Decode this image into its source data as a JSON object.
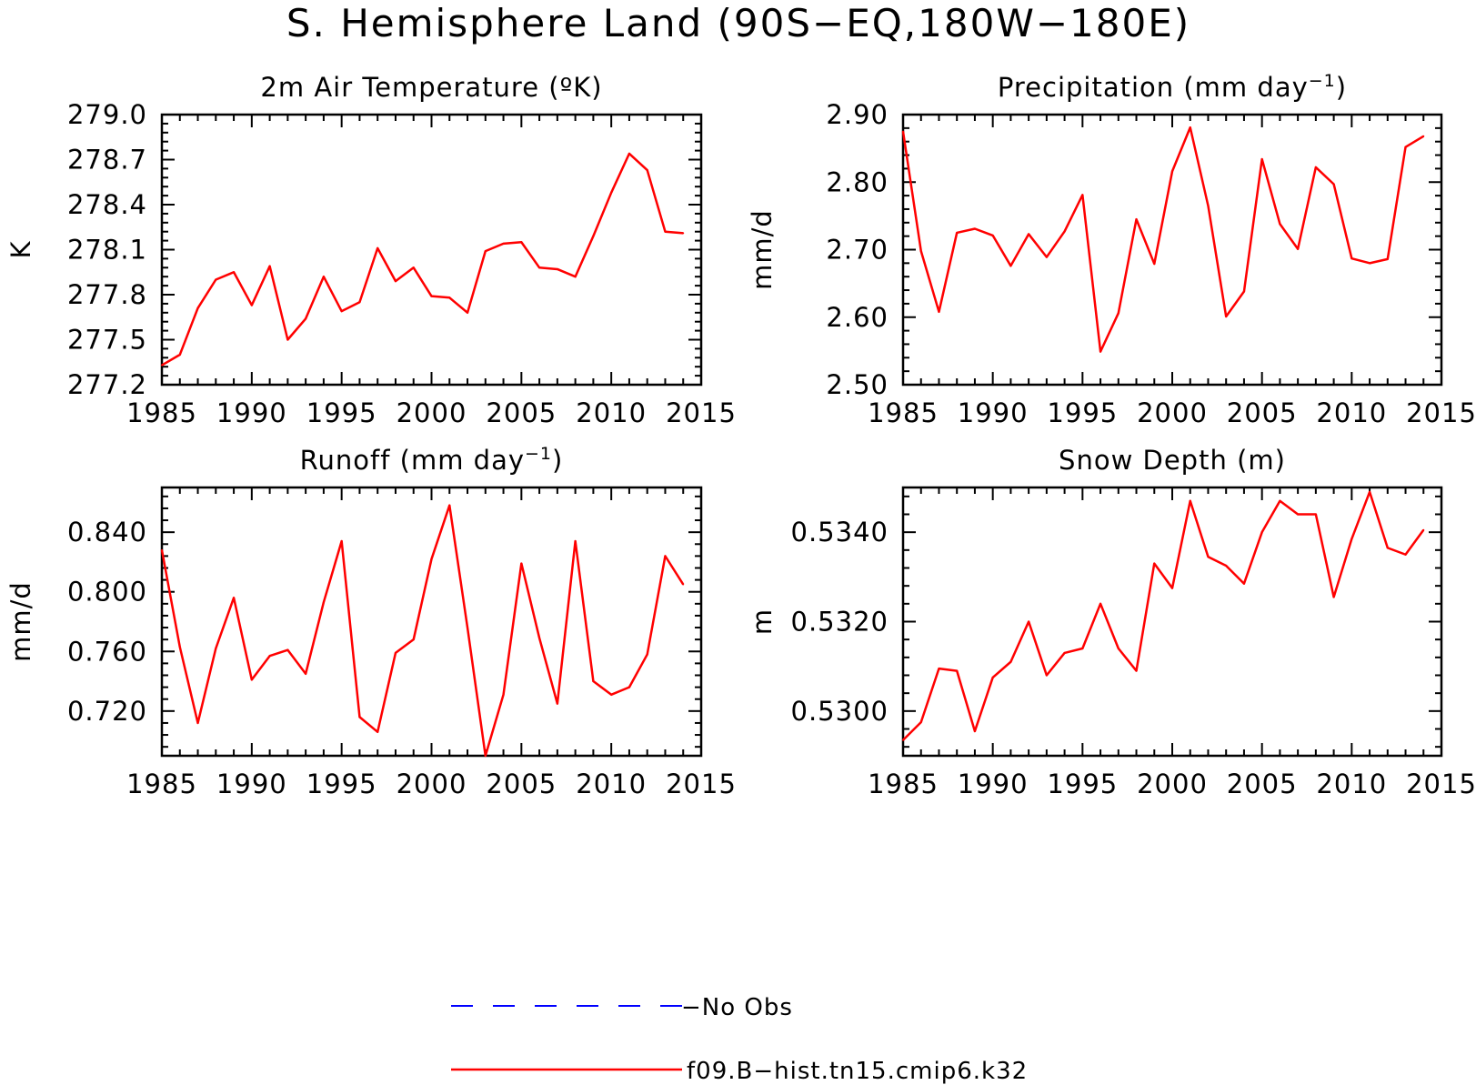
{
  "figure": {
    "title": "S. Hemisphere Land (90S−EQ,180W−180E)"
  },
  "legend": {
    "placement": "bottom-center",
    "entries": [
      {
        "label": "−No Obs",
        "color": "#0000ff",
        "dashed": true
      },
      {
        "label": "f09.B−hist.tn15.cmip6.k32",
        "color": "#ff0000",
        "dashed": false
      }
    ]
  },
  "chart_data": [
    {
      "type": "line",
      "title": "2m Air Temperature (ºK)",
      "title_sup": "",
      "title_end": "",
      "xlabel": "",
      "ylabel": "K",
      "xlim": [
        1985,
        2015
      ],
      "ylim": [
        277.2,
        279.0
      ],
      "xticks": [
        "1985",
        "1990",
        "1995",
        "2000",
        "2005",
        "2010",
        "2015"
      ],
      "yticks": [
        "277.2",
        "277.5",
        "277.8",
        "278.1",
        "278.4",
        "278.7",
        "279.0"
      ],
      "x": [
        1985,
        1986,
        1987,
        1988,
        1989,
        1990,
        1991,
        1992,
        1993,
        1994,
        1995,
        1996,
        1997,
        1998,
        1999,
        2000,
        2001,
        2002,
        2003,
        2004,
        2005,
        2006,
        2007,
        2008,
        2009,
        2010,
        2011,
        2012,
        2013,
        2014
      ],
      "series": [
        {
          "values": [
            277.33,
            277.4,
            277.71,
            277.9,
            277.95,
            277.73,
            277.99,
            277.5,
            277.64,
            277.92,
            277.69,
            277.75,
            278.11,
            277.89,
            277.98,
            277.79,
            277.78,
            277.68,
            278.09,
            278.14,
            278.15,
            277.98,
            277.97,
            277.92,
            278.19,
            278.48,
            278.74,
            278.63,
            278.22,
            278.21
          ],
          "color": "#ff0000"
        }
      ]
    },
    {
      "type": "line",
      "title": "Precipitation (mm day",
      "title_sup": "−1",
      "title_end": ")",
      "xlabel": "",
      "ylabel": "mm/d",
      "xlim": [
        1985,
        2015
      ],
      "ylim": [
        2.5,
        2.9
      ],
      "xticks": [
        "1985",
        "1990",
        "1995",
        "2000",
        "2005",
        "2010",
        "2015"
      ],
      "yticks": [
        "2.50",
        "2.60",
        "2.70",
        "2.80",
        "2.90"
      ],
      "x": [
        1985,
        1986,
        1987,
        1988,
        1989,
        1990,
        1991,
        1992,
        1993,
        1994,
        1995,
        1996,
        1997,
        1998,
        1999,
        2000,
        2001,
        2002,
        2003,
        2004,
        2005,
        2006,
        2007,
        2008,
        2009,
        2010,
        2011,
        2012,
        2013,
        2014
      ],
      "series": [
        {
          "values": [
            2.875,
            2.698,
            2.608,
            2.725,
            2.731,
            2.721,
            2.676,
            2.723,
            2.689,
            2.727,
            2.781,
            2.549,
            2.606,
            2.745,
            2.679,
            2.816,
            2.881,
            2.765,
            2.601,
            2.638,
            2.834,
            2.738,
            2.701,
            2.822,
            2.797,
            2.687,
            2.68,
            2.686,
            2.852,
            2.868
          ],
          "color": "#ff0000"
        }
      ]
    },
    {
      "type": "line",
      "title": "Runoff (mm day",
      "title_sup": "−1",
      "title_end": ")",
      "xlabel": "",
      "ylabel": "mm/d",
      "xlim": [
        1985,
        2015
      ],
      "ylim": [
        0.69,
        0.87
      ],
      "xticks": [
        "1985",
        "1990",
        "1995",
        "2000",
        "2005",
        "2010",
        "2015"
      ],
      "yticks": [
        "0.720",
        "0.760",
        "0.800",
        "0.840"
      ],
      "x": [
        1985,
        1986,
        1987,
        1988,
        1989,
        1990,
        1991,
        1992,
        1993,
        1994,
        1995,
        1996,
        1997,
        1998,
        1999,
        2000,
        2001,
        2002,
        2003,
        2004,
        2005,
        2006,
        2007,
        2008,
        2009,
        2010,
        2011,
        2012,
        2013,
        2014
      ],
      "series": [
        {
          "values": [
            0.828,
            0.763,
            0.712,
            0.762,
            0.796,
            0.741,
            0.757,
            0.761,
            0.745,
            0.793,
            0.834,
            0.716,
            0.706,
            0.759,
            0.768,
            0.822,
            0.858,
            0.776,
            0.69,
            0.731,
            0.819,
            0.769,
            0.725,
            0.834,
            0.74,
            0.731,
            0.736,
            0.758,
            0.824,
            0.805
          ],
          "color": "#ff0000"
        }
      ]
    },
    {
      "type": "line",
      "title": "Snow Depth (m)",
      "title_sup": "",
      "title_end": "",
      "xlabel": "",
      "ylabel": "m",
      "xlim": [
        1985,
        2015
      ],
      "ylim": [
        0.529,
        0.535
      ],
      "xticks": [
        "1985",
        "1990",
        "1995",
        "2000",
        "2005",
        "2010",
        "2015"
      ],
      "yticks": [
        "0.5300",
        "0.5320",
        "0.5340"
      ],
      "x": [
        1985,
        1986,
        1987,
        1988,
        1989,
        1990,
        1991,
        1992,
        1993,
        1994,
        1995,
        1996,
        1997,
        1998,
        1999,
        2000,
        2001,
        2002,
        2003,
        2004,
        2005,
        2006,
        2007,
        2008,
        2009,
        2010,
        2011,
        2012,
        2013,
        2014
      ],
      "series": [
        {
          "values": [
            0.52935,
            0.52975,
            0.53095,
            0.5309,
            0.52955,
            0.53075,
            0.5311,
            0.532,
            0.5308,
            0.5313,
            0.5314,
            0.5324,
            0.5314,
            0.5309,
            0.5333,
            0.53275,
            0.5347,
            0.53345,
            0.53325,
            0.53285,
            0.534,
            0.5347,
            0.5344,
            0.5344,
            0.53255,
            0.53385,
            0.5349,
            0.53365,
            0.5335,
            0.53405
          ],
          "color": "#ff0000"
        }
      ]
    }
  ]
}
